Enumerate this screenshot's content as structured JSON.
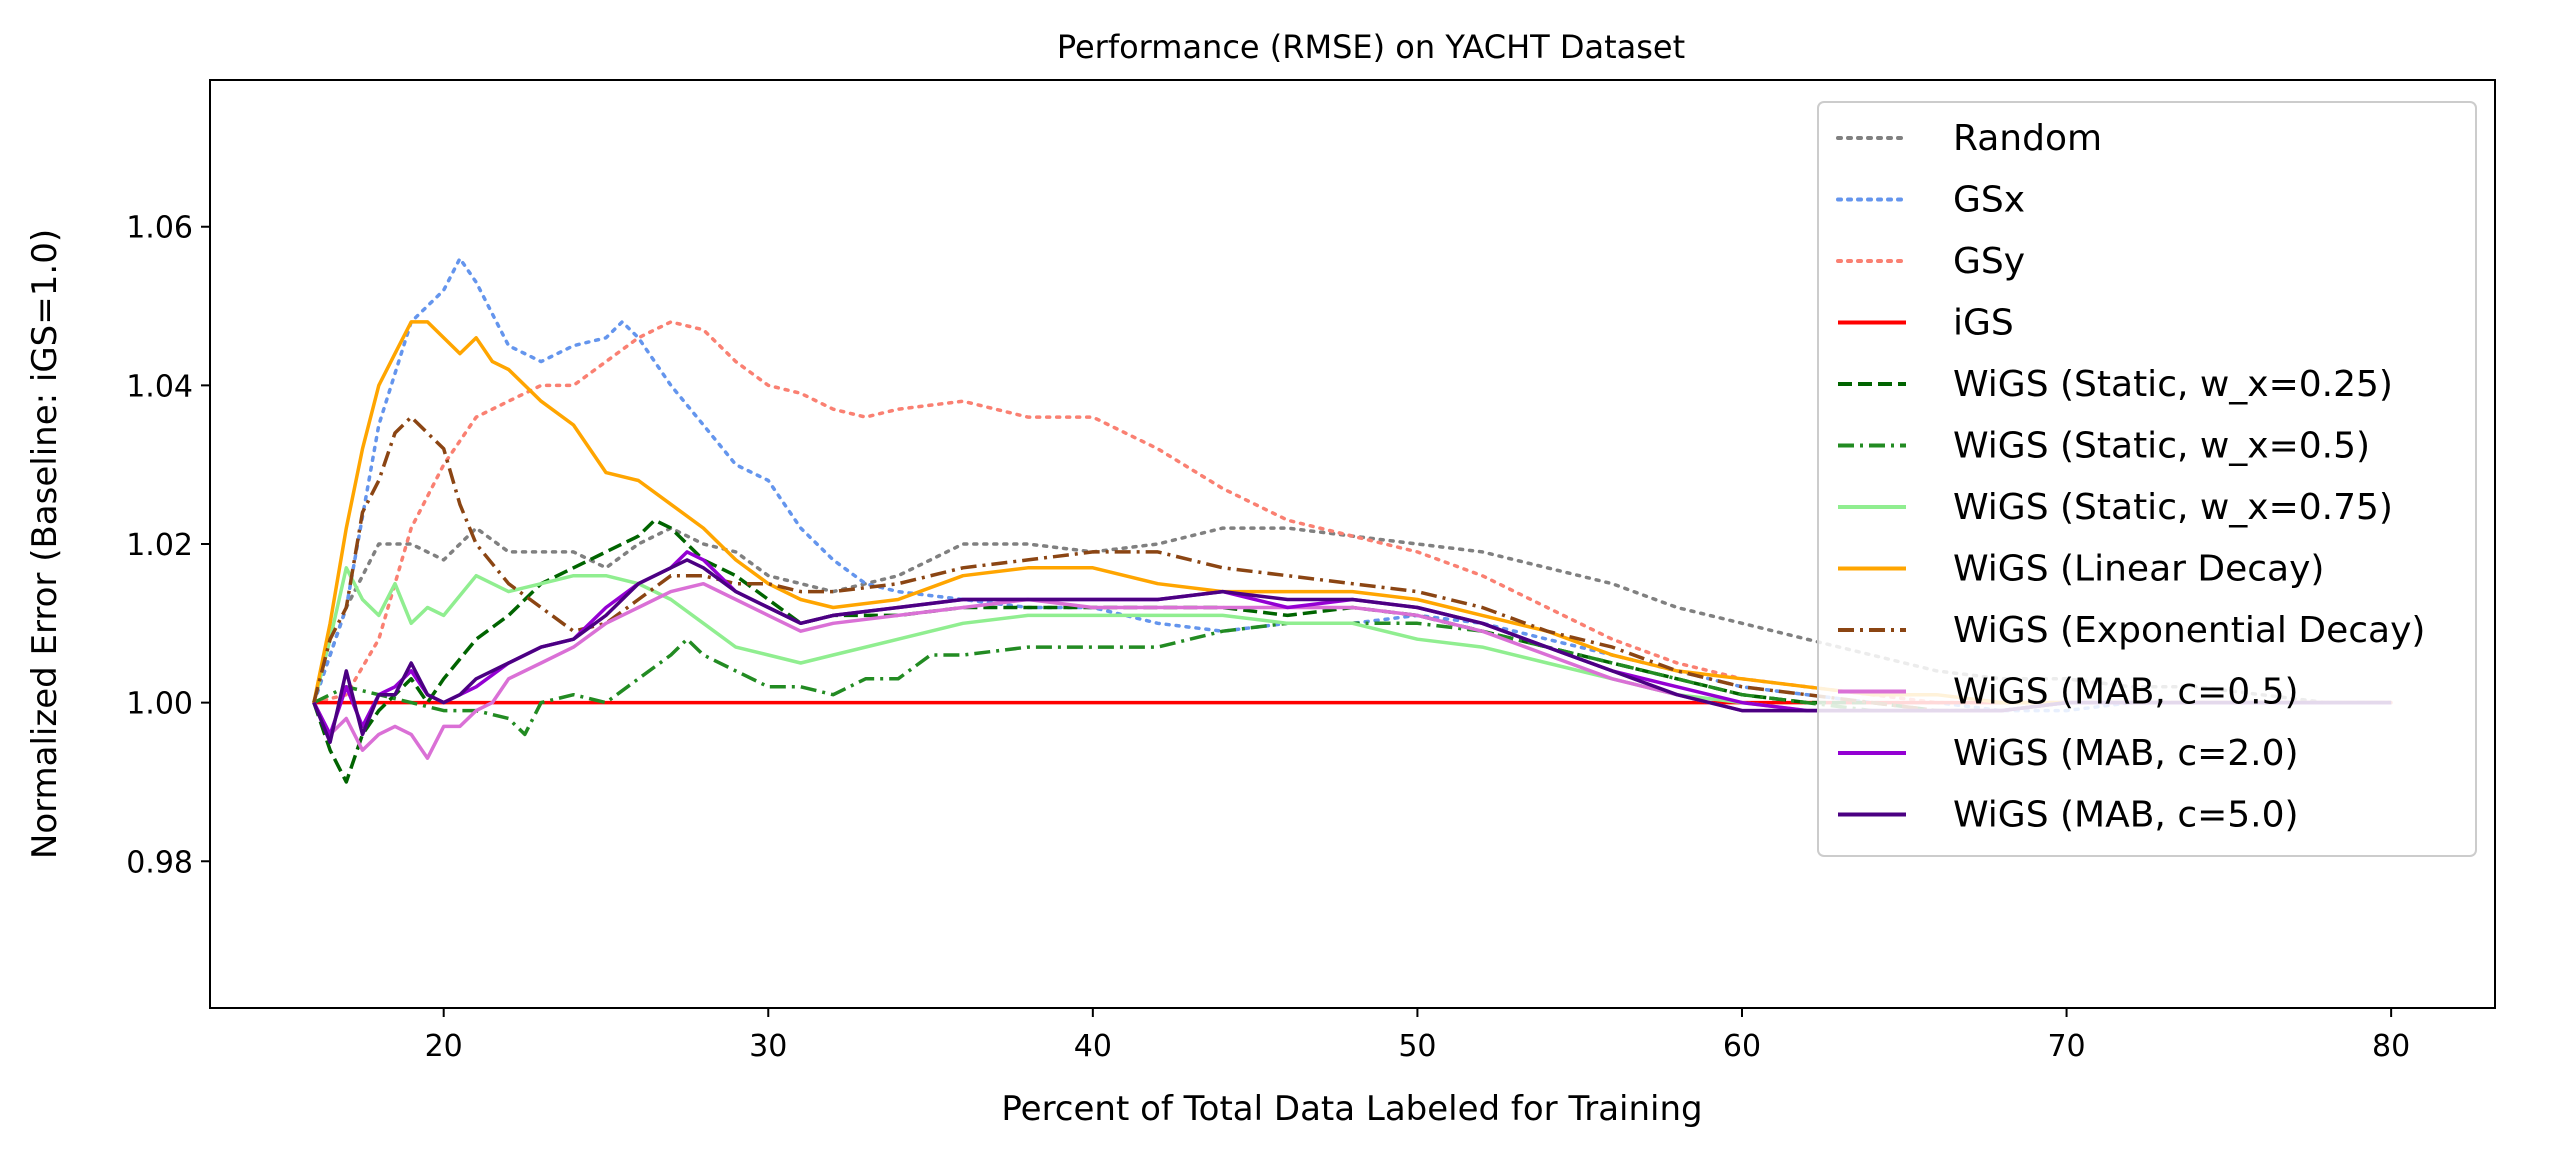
{
  "chart_data": {
    "type": "line",
    "title": "Performance (RMSE) on YACHT Dataset",
    "xlabel": "Percent of Total Data Labeled for Training",
    "ylabel": "Normalized Error (Baseline: iGS=1.0)",
    "xlim": [
      12.8,
      83.2
    ],
    "ylim": [
      0.9615,
      1.0785
    ],
    "xticks": [
      20,
      30,
      40,
      50,
      60,
      70,
      80
    ],
    "yticks": [
      0.98,
      1.0,
      1.02,
      1.04,
      1.06
    ],
    "xtick_labels": [
      "20",
      "30",
      "40",
      "50",
      "60",
      "70",
      "80"
    ],
    "ytick_labels": [
      "0.98",
      "1.00",
      "1.02",
      "1.04",
      "1.06"
    ],
    "grid": false,
    "legend_position": "upper right",
    "series": [
      {
        "name": "Random",
        "color": "#808080",
        "style": "dotted",
        "x": [
          16,
          17,
          18,
          19,
          20,
          21,
          22,
          23,
          24,
          25,
          26,
          27,
          28,
          29,
          30,
          32,
          34,
          36,
          38,
          40,
          42,
          44,
          46,
          48,
          50,
          52,
          54,
          56,
          58,
          60,
          62,
          64,
          66,
          68,
          70,
          72,
          74,
          76,
          78,
          80
        ],
        "y": [
          1.0,
          1.012,
          1.02,
          1.02,
          1.018,
          1.022,
          1.019,
          1.019,
          1.019,
          1.017,
          1.02,
          1.022,
          1.02,
          1.019,
          1.016,
          1.014,
          1.016,
          1.02,
          1.02,
          1.019,
          1.02,
          1.022,
          1.022,
          1.021,
          1.02,
          1.019,
          1.017,
          1.015,
          1.012,
          1.01,
          1.008,
          1.006,
          1.004,
          1.003,
          1.003,
          1.002,
          1.002,
          1.001,
          1.0,
          1.0
        ]
      },
      {
        "name": "GSx",
        "color": "#6495ED",
        "style": "dotted",
        "x": [
          16,
          17,
          18,
          19,
          20,
          20.5,
          21,
          22,
          23,
          24,
          25,
          25.5,
          26,
          27,
          28,
          29,
          30,
          31,
          32,
          33,
          34,
          36,
          38,
          40,
          42,
          44,
          46,
          48,
          50,
          52,
          54,
          56,
          58,
          60,
          62,
          64,
          66,
          68,
          70,
          72,
          74,
          76,
          78,
          80
        ],
        "y": [
          1.0,
          1.012,
          1.035,
          1.048,
          1.052,
          1.056,
          1.053,
          1.045,
          1.043,
          1.045,
          1.046,
          1.048,
          1.046,
          1.04,
          1.035,
          1.03,
          1.028,
          1.022,
          1.018,
          1.015,
          1.014,
          1.013,
          1.012,
          1.012,
          1.01,
          1.009,
          1.01,
          1.01,
          1.011,
          1.01,
          1.008,
          1.006,
          1.004,
          1.002,
          1.001,
          1.0,
          1.0,
          0.999,
          0.999,
          1.0,
          1.0,
          1.0,
          1.0,
          1.0
        ]
      },
      {
        "name": "GSy",
        "color": "#FA8072",
        "style": "dotted",
        "x": [
          16,
          17,
          18,
          19,
          20,
          21,
          22,
          23,
          24,
          25,
          26,
          27,
          28,
          29,
          30,
          31,
          32,
          33,
          34,
          36,
          38,
          40,
          42,
          44,
          46,
          48,
          50,
          52,
          54,
          56,
          58,
          60,
          62,
          64,
          66,
          68,
          70,
          72,
          74,
          76,
          78,
          80
        ],
        "y": [
          1.0,
          1.001,
          1.008,
          1.022,
          1.03,
          1.036,
          1.038,
          1.04,
          1.04,
          1.043,
          1.046,
          1.048,
          1.047,
          1.043,
          1.04,
          1.039,
          1.037,
          1.036,
          1.037,
          1.038,
          1.036,
          1.036,
          1.032,
          1.027,
          1.023,
          1.021,
          1.019,
          1.016,
          1.012,
          1.008,
          1.005,
          1.003,
          1.002,
          1.001,
          1.0,
          1.0,
          1.0,
          1.0,
          1.0,
          1.0,
          1.0,
          1.0
        ]
      },
      {
        "name": "iGS",
        "color": "#FF0000",
        "style": "solid",
        "x": [
          16,
          80
        ],
        "y": [
          1.0,
          1.0
        ]
      },
      {
        "name": "WiGS (Static, w_x=0.25)",
        "color": "#006400",
        "style": "dashed",
        "x": [
          16,
          16.5,
          17,
          17.5,
          18,
          18.5,
          19,
          19.5,
          20,
          21,
          22,
          23,
          24,
          25,
          26,
          26.5,
          27,
          28,
          29,
          30,
          31,
          32,
          34,
          36,
          38,
          40,
          42,
          44,
          46,
          48,
          50,
          52,
          54,
          56,
          58,
          60,
          62,
          64,
          66,
          68,
          70,
          72,
          74,
          76,
          78,
          80
        ],
        "y": [
          1.0,
          0.994,
          0.99,
          0.996,
          0.999,
          1.001,
          1.003,
          1.0,
          1.003,
          1.008,
          1.011,
          1.015,
          1.017,
          1.019,
          1.021,
          1.023,
          1.022,
          1.018,
          1.016,
          1.013,
          1.01,
          1.011,
          1.011,
          1.012,
          1.012,
          1.012,
          1.012,
          1.012,
          1.011,
          1.012,
          1.011,
          1.009,
          1.007,
          1.005,
          1.003,
          1.001,
          1.0,
          1.0,
          0.999,
          0.999,
          1.0,
          1.0,
          1.0,
          1.0,
          1.0,
          1.0
        ]
      },
      {
        "name": "WiGS (Static, w_x=0.5)",
        "color": "#228B22",
        "style": "dashdot",
        "x": [
          16,
          17,
          18,
          19,
          20,
          21,
          22,
          22.5,
          23,
          24,
          25,
          26,
          27,
          27.5,
          28,
          29,
          30,
          31,
          32,
          33,
          34,
          35,
          36,
          38,
          40,
          42,
          44,
          46,
          48,
          50,
          52,
          54,
          56,
          58,
          60,
          62,
          64,
          66,
          68,
          70,
          72,
          74,
          76,
          78,
          80
        ],
        "y": [
          1.0,
          1.002,
          1.001,
          1.0,
          0.999,
          0.999,
          0.998,
          0.996,
          1.0,
          1.001,
          1.0,
          1.003,
          1.006,
          1.008,
          1.006,
          1.004,
          1.002,
          1.002,
          1.001,
          1.003,
          1.003,
          1.006,
          1.006,
          1.007,
          1.007,
          1.007,
          1.009,
          1.01,
          1.01,
          1.01,
          1.009,
          1.007,
          1.005,
          1.003,
          1.001,
          1.0,
          0.999,
          0.999,
          0.999,
          1.0,
          1.0,
          1.0,
          1.0,
          1.0,
          1.0
        ]
      },
      {
        "name": "WiGS (Static, w_x=0.75)",
        "color": "#90EE90",
        "style": "solid",
        "x": [
          16,
          16.5,
          17,
          17.5,
          18,
          18.5,
          19,
          19.5,
          20,
          21,
          22,
          23,
          24,
          25,
          26,
          27,
          28,
          29,
          30,
          31,
          32,
          34,
          36,
          38,
          40,
          42,
          44,
          46,
          48,
          50,
          52,
          54,
          56,
          58,
          60,
          62,
          64,
          66,
          68,
          70,
          72,
          74,
          76,
          78,
          80
        ],
        "y": [
          1.0,
          1.008,
          1.017,
          1.013,
          1.011,
          1.015,
          1.01,
          1.012,
          1.011,
          1.016,
          1.014,
          1.015,
          1.016,
          1.016,
          1.015,
          1.013,
          1.01,
          1.007,
          1.006,
          1.005,
          1.006,
          1.008,
          1.01,
          1.011,
          1.011,
          1.011,
          1.011,
          1.01,
          1.01,
          1.008,
          1.007,
          1.005,
          1.003,
          1.001,
          1.0,
          0.999,
          0.999,
          0.999,
          0.999,
          1.0,
          1.0,
          1.0,
          1.0,
          1.0,
          1.0
        ]
      },
      {
        "name": "WiGS (Linear Decay)",
        "color": "#FFA500",
        "style": "solid",
        "x": [
          16,
          16.5,
          17,
          17.5,
          18,
          18.5,
          19,
          19.5,
          20,
          20.5,
          21,
          21.5,
          22,
          23,
          24,
          25,
          26,
          27,
          28,
          29,
          30,
          31,
          32,
          34,
          36,
          38,
          40,
          42,
          44,
          46,
          48,
          50,
          52,
          54,
          56,
          58,
          60,
          62,
          64,
          66,
          68,
          70,
          72,
          74,
          76,
          78,
          80
        ],
        "y": [
          1.0,
          1.01,
          1.022,
          1.032,
          1.04,
          1.044,
          1.048,
          1.048,
          1.046,
          1.044,
          1.046,
          1.043,
          1.042,
          1.038,
          1.035,
          1.029,
          1.028,
          1.025,
          1.022,
          1.018,
          1.015,
          1.013,
          1.012,
          1.013,
          1.016,
          1.017,
          1.017,
          1.015,
          1.014,
          1.014,
          1.014,
          1.013,
          1.011,
          1.009,
          1.006,
          1.004,
          1.003,
          1.002,
          1.001,
          1.001,
          1.0,
          1.0,
          1.0,
          1.0,
          1.0,
          1.0,
          1.0
        ]
      },
      {
        "name": "WiGS (Exponential Decay)",
        "color": "#8B4513",
        "style": "dashdot",
        "x": [
          16,
          16.5,
          17,
          17.5,
          18,
          18.5,
          19,
          19.5,
          20,
          20.5,
          21,
          22,
          23,
          24,
          25,
          26,
          27,
          28,
          29,
          30,
          31,
          32,
          34,
          36,
          38,
          40,
          42,
          44,
          46,
          48,
          50,
          52,
          54,
          56,
          58,
          60,
          62,
          64,
          66,
          68,
          70,
          72,
          74,
          76,
          78,
          80
        ],
        "y": [
          1.0,
          1.008,
          1.012,
          1.024,
          1.028,
          1.034,
          1.036,
          1.034,
          1.032,
          1.025,
          1.02,
          1.015,
          1.012,
          1.009,
          1.01,
          1.013,
          1.016,
          1.016,
          1.015,
          1.015,
          1.014,
          1.014,
          1.015,
          1.017,
          1.018,
          1.019,
          1.019,
          1.017,
          1.016,
          1.015,
          1.014,
          1.012,
          1.009,
          1.007,
          1.004,
          1.002,
          1.001,
          1.0,
          0.999,
          0.999,
          1.0,
          1.0,
          1.0,
          1.0,
          1.0,
          1.0
        ]
      },
      {
        "name": "WiGS (MAB, c=0.5)",
        "color": "#DA70D6",
        "style": "solid",
        "x": [
          16,
          16.5,
          17,
          17.5,
          18,
          18.5,
          19,
          19.5,
          20,
          20.5,
          21,
          21.5,
          22,
          23,
          24,
          25,
          26,
          27,
          28,
          29,
          30,
          31,
          32,
          34,
          36,
          38,
          40,
          42,
          44,
          46,
          48,
          50,
          52,
          54,
          56,
          58,
          60,
          62,
          64,
          66,
          68,
          70,
          72,
          74,
          76,
          78,
          80
        ],
        "y": [
          1.0,
          0.996,
          0.998,
          0.994,
          0.996,
          0.997,
          0.996,
          0.993,
          0.997,
          0.997,
          0.999,
          1.0,
          1.003,
          1.005,
          1.007,
          1.01,
          1.012,
          1.014,
          1.015,
          1.013,
          1.011,
          1.009,
          1.01,
          1.011,
          1.012,
          1.013,
          1.012,
          1.012,
          1.012,
          1.012,
          1.012,
          1.011,
          1.009,
          1.006,
          1.003,
          1.001,
          0.999,
          0.999,
          0.999,
          0.999,
          0.999,
          1.0,
          1.0,
          1.0,
          1.0,
          1.0,
          1.0
        ]
      },
      {
        "name": "WiGS (MAB, c=2.0)",
        "color": "#9400D3",
        "style": "solid",
        "x": [
          16,
          16.5,
          17,
          17.5,
          18,
          18.5,
          19,
          19.5,
          20,
          20.5,
          21,
          22,
          23,
          24,
          25,
          26,
          27,
          27.5,
          28,
          29,
          30,
          31,
          32,
          34,
          36,
          38,
          40,
          42,
          44,
          46,
          48,
          50,
          52,
          54,
          56,
          58,
          60,
          62,
          64,
          66,
          68,
          70,
          72,
          74,
          76,
          78,
          80
        ],
        "y": [
          1.0,
          0.996,
          1.002,
          0.997,
          1.001,
          1.002,
          1.004,
          1.001,
          1.0,
          1.001,
          1.002,
          1.005,
          1.007,
          1.008,
          1.012,
          1.015,
          1.017,
          1.019,
          1.018,
          1.014,
          1.012,
          1.01,
          1.011,
          1.012,
          1.013,
          1.013,
          1.013,
          1.013,
          1.014,
          1.012,
          1.013,
          1.012,
          1.01,
          1.007,
          1.004,
          1.002,
          1.0,
          0.999,
          0.999,
          0.999,
          0.999,
          1.0,
          1.0,
          1.0,
          1.0,
          1.0,
          1.0
        ]
      },
      {
        "name": "WiGS (MAB, c=5.0)",
        "color": "#4B0082",
        "style": "solid",
        "x": [
          16,
          16.5,
          17,
          17.5,
          18,
          18.5,
          19,
          19.5,
          20,
          20.5,
          21,
          22,
          23,
          24,
          25,
          26,
          27,
          27.5,
          28,
          29,
          30,
          31,
          32,
          34,
          36,
          38,
          40,
          42,
          44,
          46,
          48,
          50,
          52,
          54,
          56,
          58,
          60,
          62,
          64,
          66,
          68,
          70,
          72,
          74,
          76,
          78,
          80
        ],
        "y": [
          1.0,
          0.995,
          1.004,
          0.996,
          1.001,
          1.001,
          1.005,
          1.001,
          1.0,
          1.001,
          1.003,
          1.005,
          1.007,
          1.008,
          1.011,
          1.015,
          1.017,
          1.018,
          1.017,
          1.014,
          1.012,
          1.01,
          1.011,
          1.012,
          1.013,
          1.013,
          1.013,
          1.013,
          1.014,
          1.013,
          1.013,
          1.012,
          1.01,
          1.007,
          1.004,
          1.001,
          0.999,
          0.999,
          0.999,
          0.999,
          0.999,
          1.0,
          1.0,
          1.0,
          1.0,
          1.0,
          1.0
        ]
      }
    ]
  }
}
